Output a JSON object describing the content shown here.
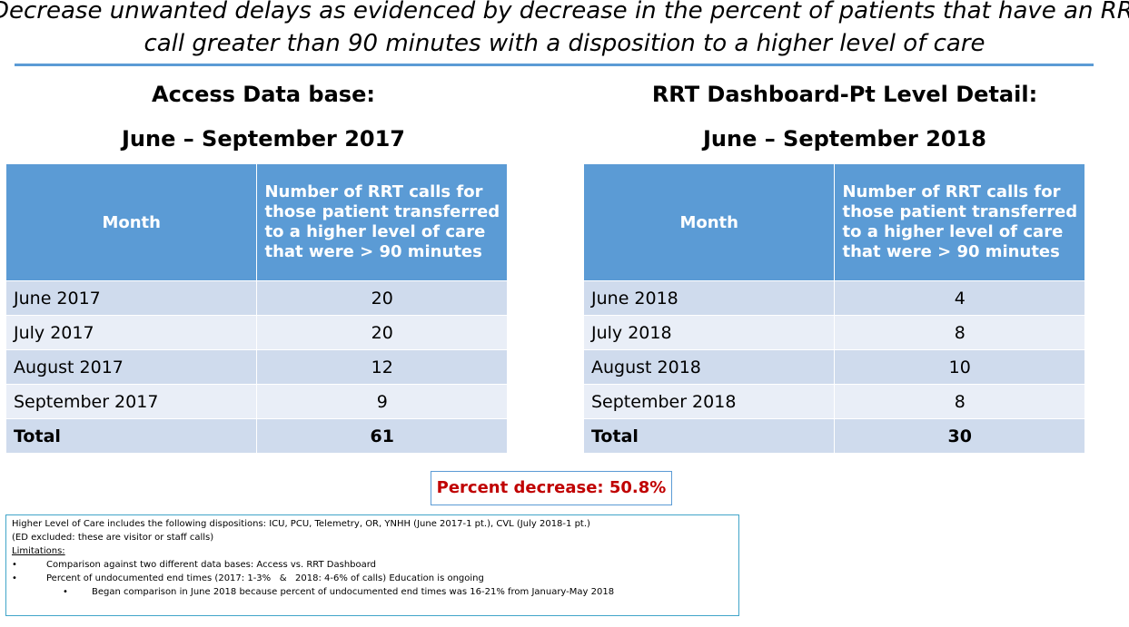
{
  "title": {
    "line1": "Decrease unwanted delays as evidenced by decrease in the percent of patients that have an RRT",
    "line2": "call greater than 90 minutes with a disposition to a higher level of care"
  },
  "left": {
    "heading1": "Access Data base:",
    "heading2": "June – September 2017",
    "table": {
      "header_month": "Month",
      "header_calls": [
        "Number of RRT calls for",
        "those patient transferred",
        "to a higher level of care",
        "that were > 90 minutes"
      ],
      "rows": [
        {
          "month": "June 2017",
          "value": "20"
        },
        {
          "month": "July 2017",
          "value": "20"
        },
        {
          "month": "August 2017",
          "value": "12"
        },
        {
          "month": "September 2017",
          "value": "9"
        }
      ],
      "total_label": "Total",
      "total_value": "61"
    }
  },
  "right": {
    "heading1": "RRT Dashboard-Pt Level Detail:",
    "heading2": "June – September 2018",
    "table": {
      "header_month": "Month",
      "header_calls": [
        "Number of RRT calls for",
        "those patient transferred",
        "to a higher level of care",
        "that were > 90 minutes"
      ],
      "rows": [
        {
          "month": "June 2018",
          "value": "4"
        },
        {
          "month": "July 2018",
          "value": "8"
        },
        {
          "month": "August 2018",
          "value": "10"
        },
        {
          "month": "September 2018",
          "value": "8"
        }
      ],
      "total_label": "Total",
      "total_value": "30"
    }
  },
  "percent_decrease": "Percent decrease: 50.8%",
  "notes": {
    "line1": "Higher Level of Care includes the following dispositions: ICU, PCU, Telemetry, OR, YNHH (June 2017-1 pt.), CVL (July 2018-1 pt.)",
    "line2": "(ED excluded: these are visitor or staff calls)",
    "limitations_label": "Limitations:",
    "bullet1": "Comparison against two different data bases: Access vs. RRT Dashboard",
    "bullet2": "Percent of undocumented end times (2017: 1-3%   &   2018: 4-6% of calls) Education is ongoing",
    "sub_bullet": "Began comparison in June 2018 because percent of undocumented end times was 16-21% from January-May 2018",
    "bullet_char": "•"
  },
  "colors": {
    "header_blue": "#5b9bd5",
    "row_dark": "#cfdbed",
    "row_light": "#e9eef7",
    "accent_red": "#c00000"
  }
}
